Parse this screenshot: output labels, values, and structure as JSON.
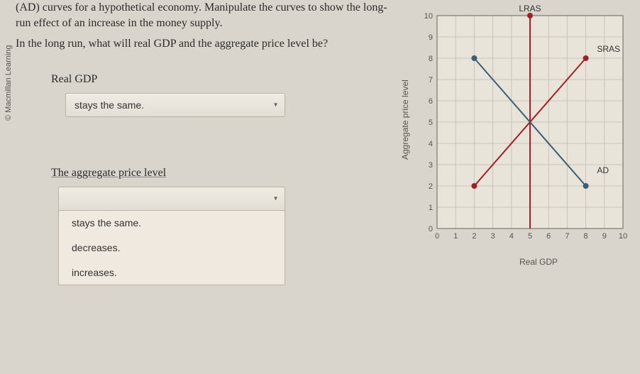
{
  "copyright": "© Macmillan Learning",
  "question": {
    "para1": "(AD) curves for a hypothetical economy. Manipulate the curves to show the long-run effect of an increase in the money supply.",
    "para2": "In the long run, what will real GDP and the aggregate price level be?"
  },
  "real_gdp": {
    "label": "Real GDP",
    "selected": "stays the same."
  },
  "price_level": {
    "label": "The aggregate price level",
    "options": [
      "stays the same.",
      "decreases.",
      "increases."
    ]
  },
  "chart": {
    "xlabel": "Real GDP",
    "ylabel": "Aggregate price level",
    "xlim": [
      0,
      10
    ],
    "ylim": [
      0,
      10
    ],
    "xtick_step": 1,
    "ytick_step": 1,
    "background_color": "#e9e4da",
    "grid_color": "#c9c3b7",
    "axis_color": "#6b665c",
    "tick_font_size": 11,
    "label_font_size": 12,
    "lines": {
      "LRAS": {
        "color": "#a02028",
        "width": 2,
        "points": [
          [
            5,
            0
          ],
          [
            5,
            10
          ]
        ],
        "endpoint": [
          5,
          10
        ],
        "label_pos": [
          5,
          10.6
        ]
      },
      "SRAS": {
        "color": "#a02028",
        "width": 2,
        "points": [
          [
            2,
            2
          ],
          [
            8,
            8
          ]
        ],
        "endpoint": [
          8,
          8
        ],
        "label_pos": [
          8.6,
          8.3
        ]
      },
      "AD": {
        "color": "#3d5f74",
        "width": 2,
        "points": [
          [
            2,
            8
          ],
          [
            8,
            2
          ]
        ],
        "endpoint_a": [
          2,
          8
        ],
        "endpoint_b": [
          8,
          2
        ],
        "label_pos": [
          8.6,
          2.6
        ]
      }
    },
    "point_radius": 4
  }
}
